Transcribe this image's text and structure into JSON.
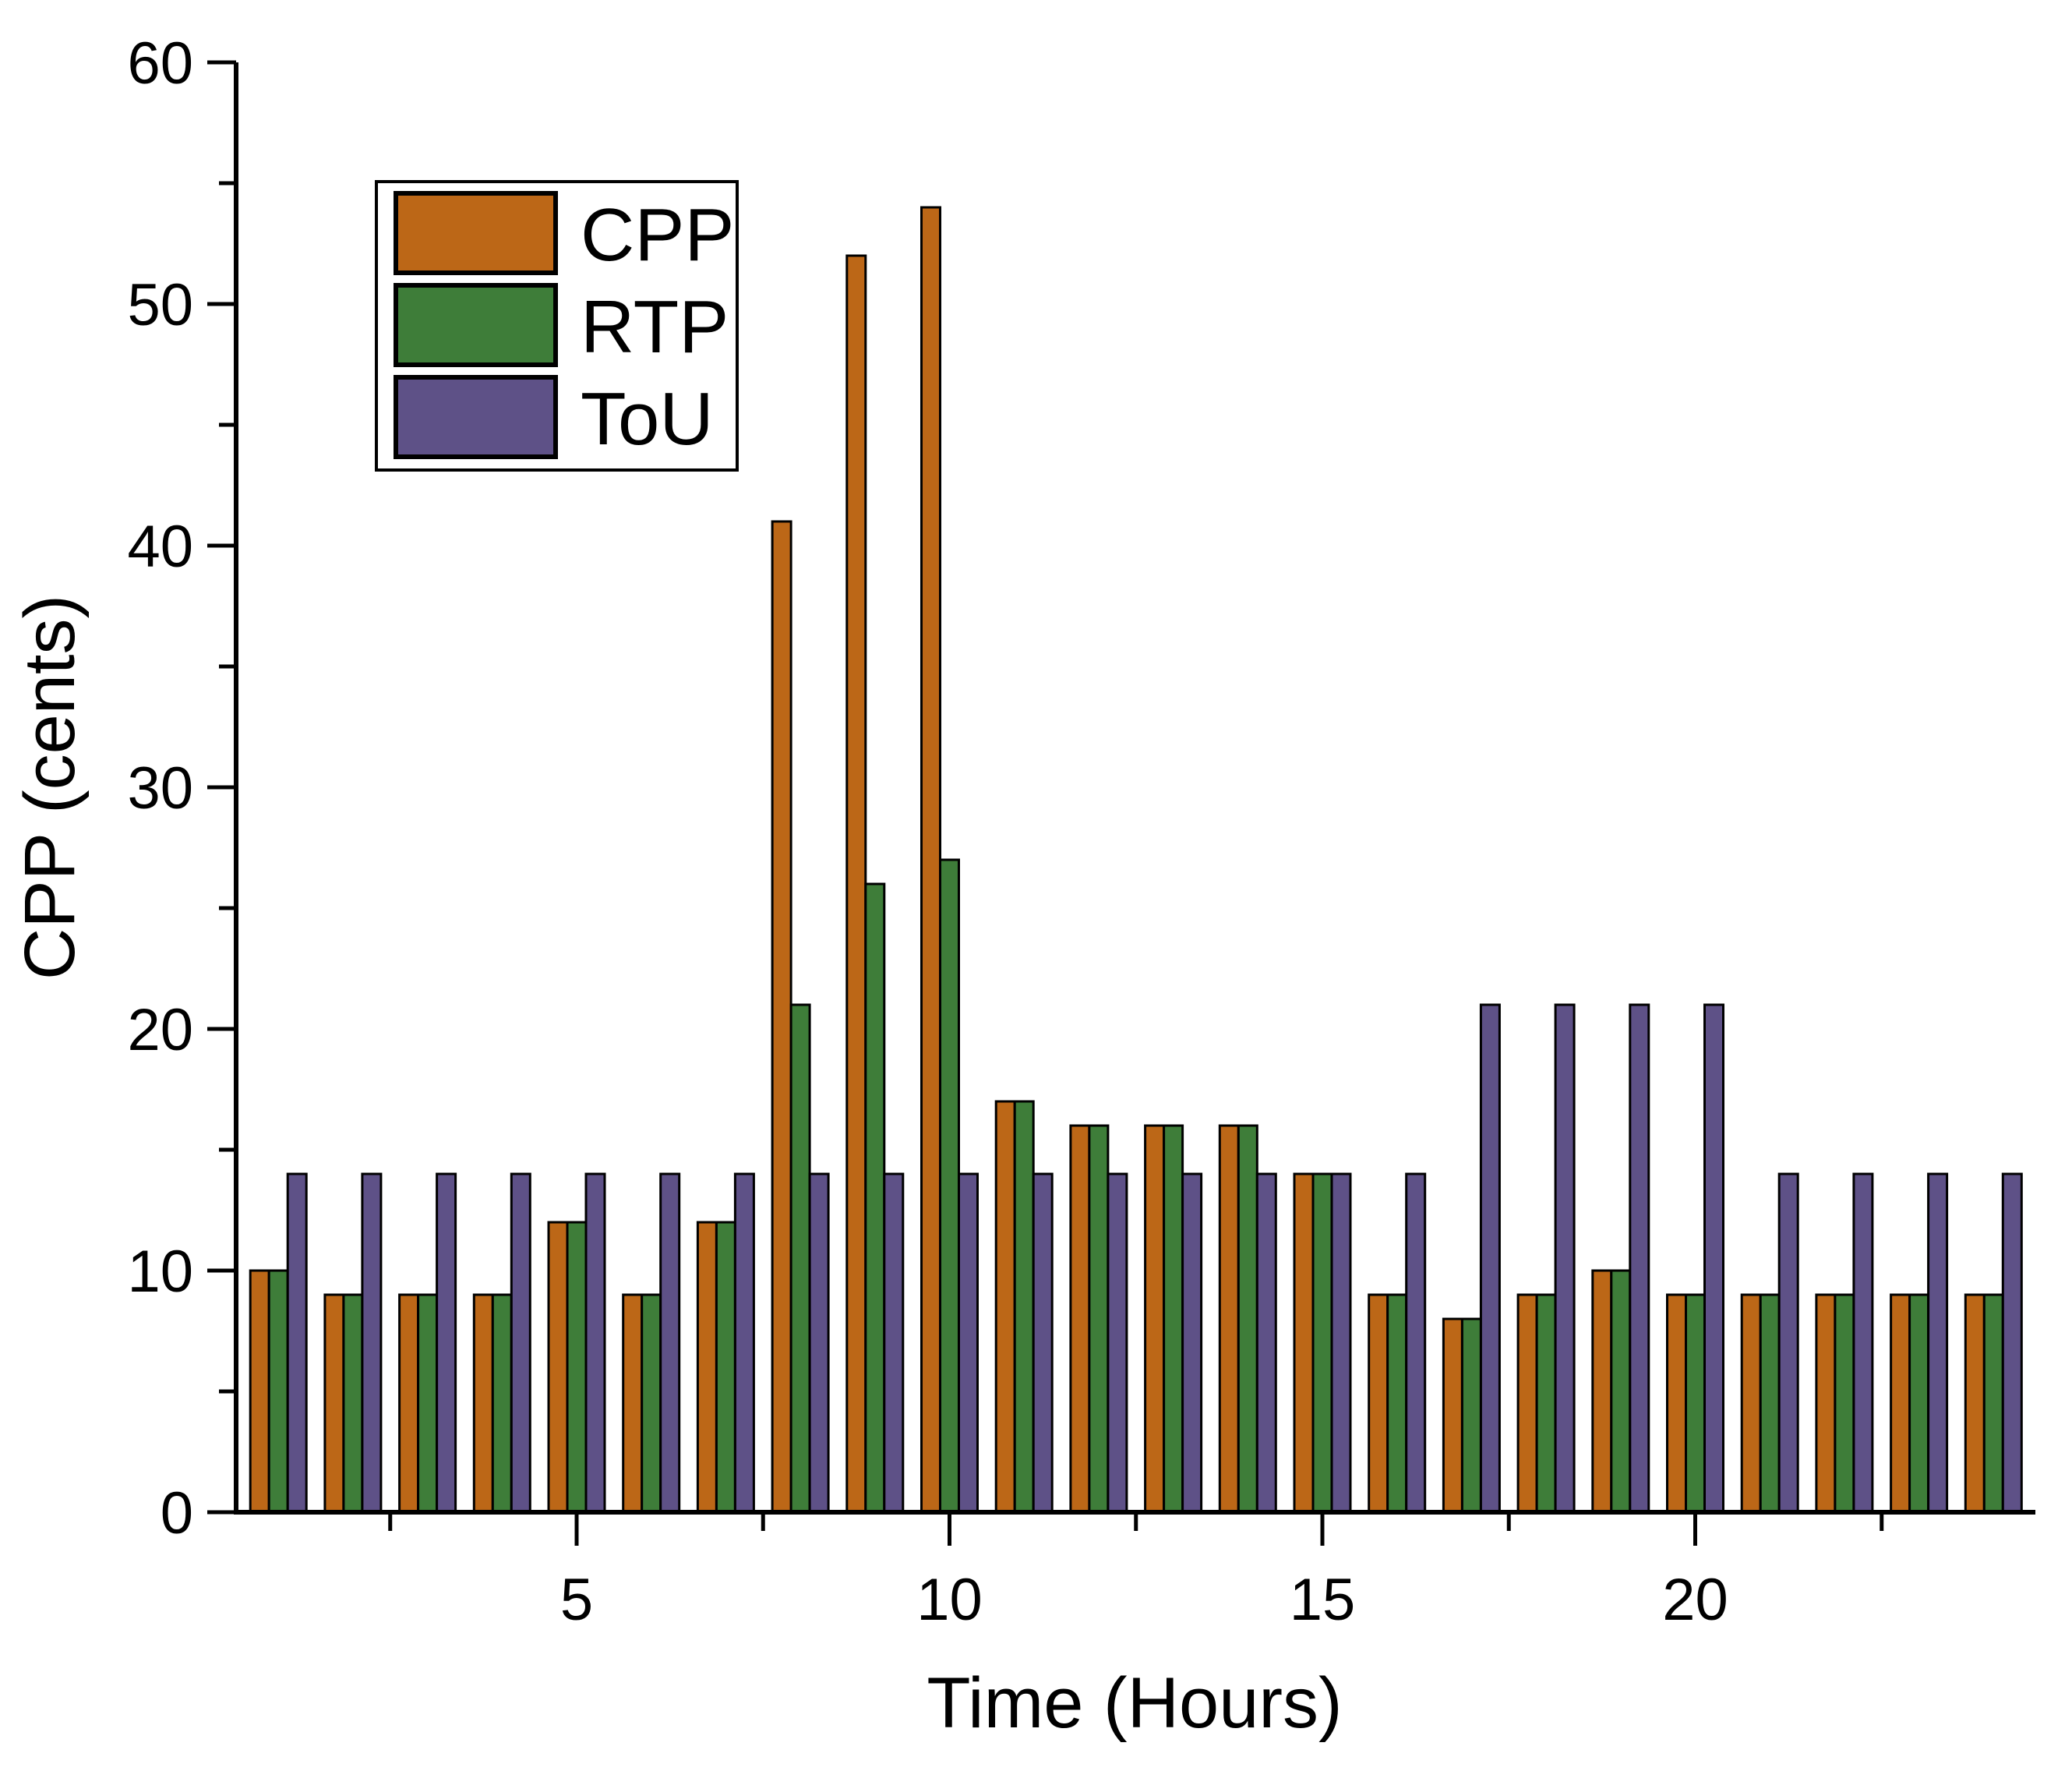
{
  "figure": {
    "background_color": "#ffffff",
    "axis_color": "#000000",
    "bar_edge_color": "#000000"
  },
  "legend": {
    "entries": [
      {
        "label": "CPP",
        "color": "#bc6717"
      },
      {
        "label": "RTP",
        "color": "#3e7d39"
      },
      {
        "label": "ToU",
        "color": "#5e5187"
      }
    ]
  },
  "chart_data": {
    "type": "bar",
    "title": "",
    "xlabel": "Time (Hours)",
    "ylabel": "CPP (cents)",
    "x": [
      1,
      2,
      3,
      4,
      5,
      6,
      7,
      8,
      9,
      10,
      11,
      12,
      13,
      14,
      15,
      16,
      17,
      18,
      19,
      20,
      21,
      22,
      23,
      24
    ],
    "series": [
      {
        "name": "CPP",
        "color": "#bc6717",
        "values": [
          10,
          9,
          9,
          9,
          12,
          9,
          12,
          41,
          52,
          54,
          17,
          16,
          16,
          16,
          14,
          9,
          8,
          9,
          10,
          9,
          9,
          9,
          9,
          9
        ]
      },
      {
        "name": "RTP",
        "color": "#3e7d39",
        "values": [
          10,
          9,
          9,
          9,
          12,
          9,
          12,
          21,
          26,
          27,
          17,
          16,
          16,
          16,
          14,
          9,
          8,
          9,
          10,
          9,
          9,
          9,
          9,
          9
        ]
      },
      {
        "name": "ToU",
        "color": "#5e5187",
        "values": [
          14,
          14,
          14,
          14,
          14,
          14,
          14,
          14,
          14,
          14,
          14,
          14,
          14,
          14,
          14,
          14,
          21,
          21,
          21,
          21,
          14,
          14,
          14,
          14
        ]
      }
    ],
    "xlim": [
      0.5,
      24.6
    ],
    "ylim": [
      0,
      60
    ],
    "yticks_major": [
      0,
      10,
      20,
      30,
      40,
      50,
      60
    ],
    "yticks_minor": [
      5,
      15,
      25,
      35,
      45,
      55
    ],
    "xticks_major": [
      5,
      10,
      15,
      20
    ],
    "xticks_minor": [
      2.5,
      7.5,
      12.5,
      17.5,
      22.5
    ],
    "grid": "off",
    "legend_position": "upper-left"
  }
}
